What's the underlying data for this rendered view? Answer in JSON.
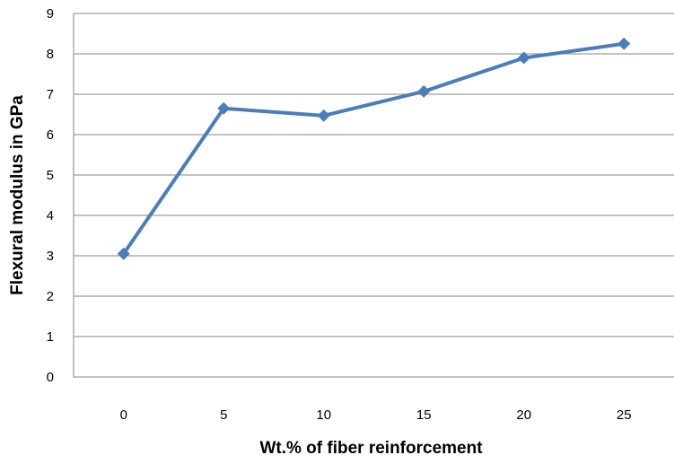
{
  "chart_data": {
    "type": "line",
    "title": "",
    "xlabel": "Wt.% of fiber reinforcement",
    "ylabel": "Flexural modulus in GPa",
    "categories": [
      "0",
      "5",
      "10",
      "15",
      "20",
      "25"
    ],
    "x": [
      0,
      5,
      10,
      15,
      20,
      25
    ],
    "series": [
      {
        "values": [
          3.05,
          6.65,
          6.47,
          7.07,
          7.9,
          8.25
        ]
      }
    ],
    "ylim": [
      0,
      9
    ],
    "yticks": [
      "0",
      "1",
      "2",
      "3",
      "4",
      "5",
      "6",
      "7",
      "8",
      "9"
    ],
    "grid": "horizontal",
    "legend": "none",
    "colors": {
      "series": "#4a7ebb",
      "grid": "#868686",
      "axis": "#868686"
    }
  }
}
